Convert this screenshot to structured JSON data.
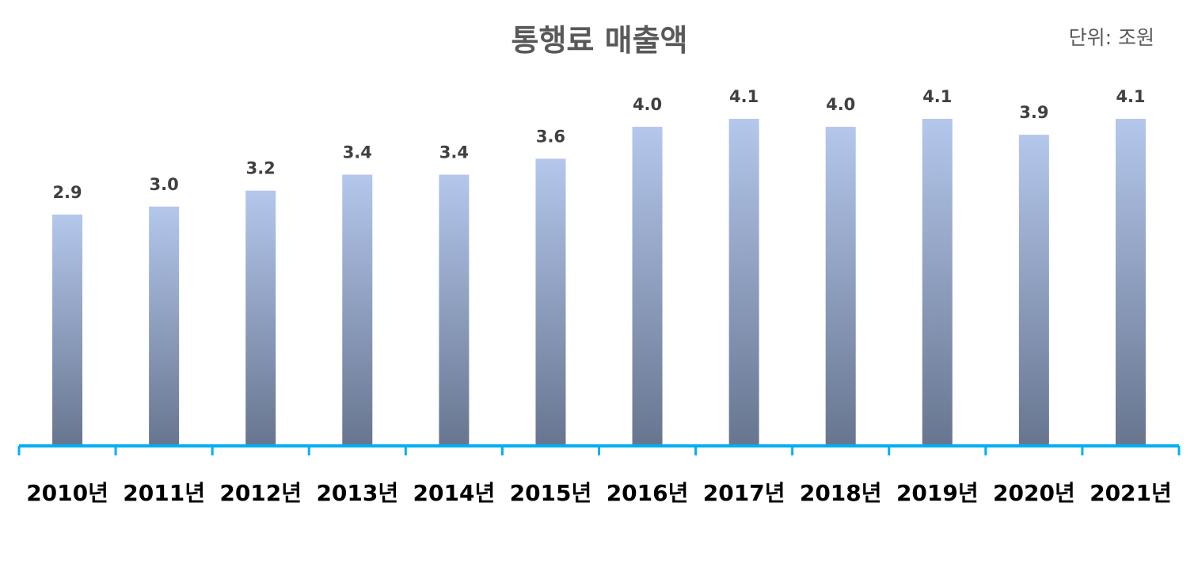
{
  "chart_data": {
    "type": "bar",
    "title": "통행료 매출액",
    "unit_label": "단위: 조원",
    "categories": [
      "2010년",
      "2011년",
      "2012년",
      "2013년",
      "2014년",
      "2015년",
      "2016년",
      "2017년",
      "2018년",
      "2019년",
      "2020년",
      "2021년"
    ],
    "values": [
      2.9,
      3.0,
      3.2,
      3.4,
      3.4,
      3.6,
      4.0,
      4.1,
      4.0,
      4.1,
      3.9,
      4.1
    ],
    "value_labels": [
      "2.9",
      "3.0",
      "3.2",
      "3.4",
      "3.4",
      "3.6",
      "4.0",
      "4.1",
      "4.0",
      "4.1",
      "3.9",
      "4.1"
    ],
    "xlabel": "",
    "ylabel": "",
    "ylim": [
      0,
      4.1
    ],
    "grid": false,
    "legend": "none",
    "colors": {
      "bar_top": "#b4c7ec",
      "bar_bottom": "#67758f",
      "axis": "#00b0f0",
      "title": "#595959",
      "data_label": "#404040",
      "tick_label": "#000000"
    }
  }
}
